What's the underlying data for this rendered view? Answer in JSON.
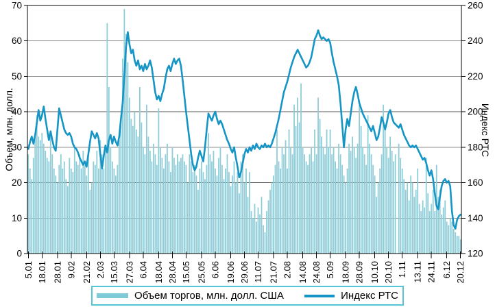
{
  "chart": {
    "left_axis_title": "Объем, млн. долл.",
    "right_axis_title": "Индекс РТС",
    "left_ticks": [
      0,
      10,
      20,
      30,
      40,
      50,
      60,
      70
    ],
    "right_ticks": [
      120,
      140,
      160,
      180,
      200,
      220,
      240,
      260
    ]
  },
  "legend": {
    "volume_label": "Объем торгов, млн. долл. США",
    "index_label": "Индекс РТС"
  },
  "colors": {
    "bar_fill": "#8fcdd8",
    "line_stroke": "#1495c5",
    "legend_border": "#55c6d5",
    "gridline": "#8e8e8e",
    "gridline_dark": "#5a5a5a",
    "axis": "#000000"
  },
  "chart_data": {
    "type": "bar",
    "subtype": "bar+line combo, daily data",
    "x_tick_labels": [
      "5.01",
      "18.01",
      "28.01",
      "9.02",
      "21.02",
      "2.03",
      "15.03",
      "27.03",
      "6.04",
      "18.04",
      "28.04",
      "15.05",
      "25.05",
      "6.06",
      "19.06",
      "29.06",
      "11.07",
      "21.07",
      "2.08",
      "14.08",
      "24.08",
      "5.09",
      "18.09",
      "28.09",
      "10.10",
      "20.10",
      "1.11",
      "13.11",
      "24.11",
      "6.12",
      "20.12"
    ],
    "x_tick_day_index": [
      0,
      8,
      17,
      25,
      34,
      42,
      50,
      59,
      67,
      76,
      84,
      92,
      101,
      109,
      118,
      126,
      134,
      143,
      151,
      160,
      168,
      176,
      185,
      193,
      202,
      210,
      218,
      227,
      235,
      244,
      252
    ],
    "left_axis": {
      "title": "Объем, млн. долл.",
      "min": 0,
      "max": 70,
      "step": 10
    },
    "right_axis": {
      "title": "Индекс РТС",
      "min": 120,
      "max": 260,
      "step": 20
    },
    "grid": "horizontal",
    "legend_position": "bottom",
    "series": [
      {
        "name": "Объем торгов, млн. долл. США",
        "type": "bar",
        "axis": "left",
        "color": "#8fcdd8",
        "values": [
          28,
          24,
          21,
          27,
          33,
          39,
          33,
          32,
          34,
          31,
          29,
          27,
          26,
          33,
          28,
          24,
          22,
          20,
          25,
          28,
          24,
          26,
          21,
          19,
          27,
          24,
          23,
          30,
          26,
          25,
          28,
          24,
          29,
          25,
          22,
          28,
          18,
          20,
          26,
          25,
          29,
          24,
          32,
          28,
          24,
          29,
          65,
          47,
          30,
          26,
          24,
          22,
          25,
          32,
          39,
          55,
          69,
          62,
          54,
          44,
          38,
          36,
          40,
          35,
          33,
          47,
          37,
          30,
          28,
          42,
          33,
          29,
          26,
          31,
          28,
          25,
          41,
          30,
          27,
          24,
          28,
          31,
          26,
          23,
          30,
          27,
          25,
          28,
          26,
          27,
          28,
          26,
          25,
          20,
          28,
          26,
          23,
          25,
          22,
          18,
          24,
          26,
          23,
          21,
          25,
          34,
          28,
          26,
          29,
          24,
          22,
          27,
          30,
          25,
          21,
          24,
          28,
          23,
          19,
          22,
          26,
          20,
          23,
          17,
          26,
          28,
          20,
          24,
          16,
          23,
          12,
          10,
          14,
          9,
          13,
          11,
          16,
          8,
          6,
          12,
          15,
          18,
          20,
          22,
          25,
          35,
          26,
          24,
          30,
          28,
          32,
          24,
          35,
          30,
          28,
          42,
          36,
          44,
          37,
          48,
          30,
          28,
          26,
          25,
          28,
          30,
          26,
          35,
          28,
          44,
          38,
          33,
          30,
          28,
          35,
          30,
          35,
          28,
          30,
          26,
          24,
          31,
          28,
          25,
          22,
          20,
          24,
          31,
          29,
          33,
          30,
          27,
          31,
          42,
          36,
          30,
          28,
          25,
          39,
          31,
          28,
          25,
          22,
          16,
          20,
          24,
          28,
          42,
          35,
          30,
          27,
          33,
          29,
          26,
          28,
          0,
          31,
          27,
          24,
          21,
          18,
          20,
          15,
          22,
          20,
          16,
          18,
          24,
          14,
          12,
          15,
          13,
          27,
          17,
          12,
          14,
          18,
          12,
          25,
          16,
          18,
          11,
          13,
          15,
          9,
          8,
          10,
          9,
          7,
          6,
          5,
          5,
          4
        ]
      },
      {
        "name": "Индекс РТС",
        "type": "line",
        "axis": "right",
        "color": "#1495c5",
        "values": [
          179,
          183,
          186,
          182,
          187,
          194,
          201,
          195,
          198,
          203,
          196,
          190,
          184,
          189,
          184,
          180,
          178,
          190,
          202,
          198,
          194,
          190,
          188,
          187,
          188,
          186,
          182,
          180,
          179,
          177,
          174,
          172,
          170,
          172,
          169,
          176,
          183,
          189,
          187,
          185,
          188,
          185,
          176,
          168,
          175,
          181,
          177,
          184,
          187,
          182,
          186,
          183,
          181,
          186,
          196,
          205,
          221,
          237,
          245,
          238,
          233,
          235,
          229,
          226,
          229,
          224,
          226,
          223,
          227,
          224,
          226,
          229,
          225,
          218,
          211,
          207,
          209,
          206,
          210,
          213,
          219,
          224,
          226,
          223,
          227,
          230,
          227,
          229,
          230,
          226,
          218,
          209,
          200,
          192,
          184,
          176,
          170,
          167,
          169,
          174,
          178,
          175,
          172,
          180,
          190,
          199,
          197,
          195,
          198,
          200,
          196,
          193,
          195,
          193,
          190,
          187,
          184,
          182,
          179,
          177,
          180,
          174,
          169,
          163,
          166,
          171,
          176,
          179,
          177,
          180,
          178,
          181,
          179,
          182,
          180,
          179,
          181,
          180,
          182,
          180,
          181,
          180,
          182,
          185,
          188,
          192,
          196,
          201,
          206,
          211,
          214,
          217,
          221,
          225,
          228,
          231,
          233,
          235,
          233,
          231,
          229,
          227,
          225,
          226,
          228,
          231,
          236,
          241,
          243,
          246,
          243,
          241,
          242,
          241,
          240,
          241,
          239,
          233,
          228,
          224,
          220,
          215,
          205,
          193,
          180,
          190,
          196,
          192,
          199,
          206,
          211,
          214,
          210,
          205,
          202,
          199,
          197,
          195,
          193,
          191,
          189,
          192,
          188,
          184,
          186,
          191,
          197,
          194,
          190,
          194,
          199,
          201,
          197,
          194,
          193,
          192,
          191,
          193,
          190,
          187,
          185,
          183,
          181,
          180,
          181,
          180,
          181,
          179,
          177,
          175,
          173,
          174,
          171,
          167,
          164,
          167,
          162,
          154,
          147,
          145,
          152,
          158,
          161,
          162,
          160,
          161,
          158,
          144,
          136,
          134,
          139,
          141,
          142
        ]
      }
    ]
  }
}
